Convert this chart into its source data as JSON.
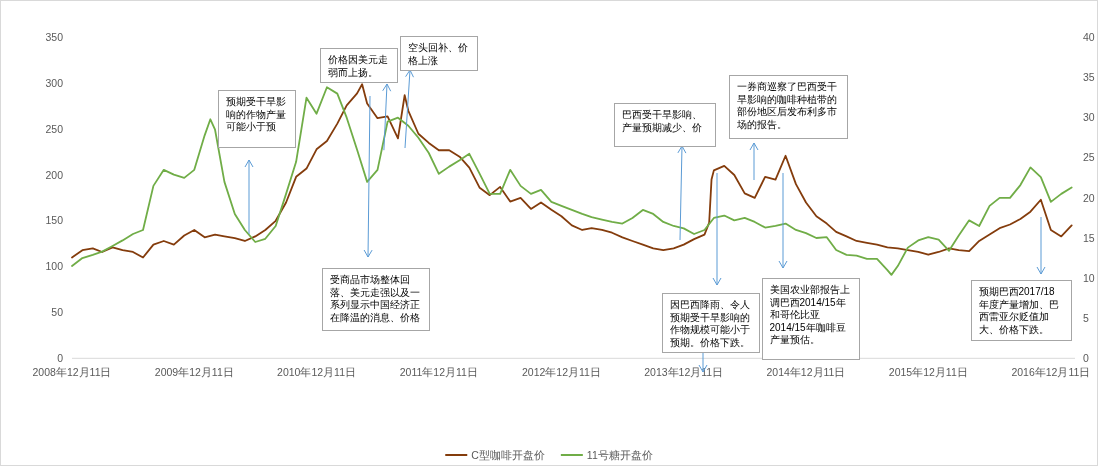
{
  "chart_data": {
    "type": "line",
    "xlim": [
      "2008-12-11",
      "2017-02-21"
    ],
    "xticks": [
      {
        "value": "2008-12-11",
        "label": "2008年12月11日"
      },
      {
        "value": "2009-12-11",
        "label": "2009年12月11日"
      },
      {
        "value": "2010-12-11",
        "label": "2010年12月11日"
      },
      {
        "value": "2011-12-11",
        "label": "2011年12月11日"
      },
      {
        "value": "2012-12-11",
        "label": "2012年12月11日"
      },
      {
        "value": "2013-12-11",
        "label": "2013年12月11日"
      },
      {
        "value": "2014-12-11",
        "label": "2014年12月11日"
      },
      {
        "value": "2015-12-11",
        "label": "2015年12月11日"
      },
      {
        "value": "2016-12-11",
        "label": "2016年12月11日"
      }
    ],
    "ylim": [
      0,
      350
    ],
    "yticks": [
      0,
      50,
      100,
      150,
      200,
      250,
      300,
      350
    ],
    "y2lim": [
      0,
      40
    ],
    "y2ticks": [
      0,
      5,
      10,
      15,
      20,
      25,
      30,
      35,
      40
    ],
    "legend": "bottom",
    "series": [
      {
        "name": "C型咖啡开盘价",
        "color": "#843c0c",
        "x": [
          "2008-12-11",
          "2009-01-11",
          "2009-02-11",
          "2009-03-11",
          "2009-04-11",
          "2009-05-11",
          "2009-06-11",
          "2009-07-11",
          "2009-08-11",
          "2009-09-11",
          "2009-10-11",
          "2009-11-11",
          "2009-12-11",
          "2010-01-11",
          "2010-02-11",
          "2010-03-11",
          "2010-04-11",
          "2010-05-11",
          "2010-06-11",
          "2010-07-11",
          "2010-08-11",
          "2010-09-11",
          "2010-10-11",
          "2010-11-11",
          "2010-12-11",
          "2011-01-11",
          "2011-02-11",
          "2011-03-11",
          "2011-04-11",
          "2011-04-26",
          "2011-05-11",
          "2011-06-11",
          "2011-07-11",
          "2011-08-11",
          "2011-08-31",
          "2011-09-11",
          "2011-10-11",
          "2011-11-11",
          "2011-12-11",
          "2012-01-11",
          "2012-02-11",
          "2012-03-11",
          "2012-04-11",
          "2012-05-11",
          "2012-06-11",
          "2012-07-11",
          "2012-08-11",
          "2012-09-11",
          "2012-10-11",
          "2012-11-11",
          "2012-12-11",
          "2013-01-11",
          "2013-02-11",
          "2013-03-11",
          "2013-04-11",
          "2013-05-11",
          "2013-06-11",
          "2013-07-11",
          "2013-08-11",
          "2013-09-11",
          "2013-10-11",
          "2013-11-11",
          "2013-12-11",
          "2014-01-11",
          "2014-02-11",
          "2014-02-25",
          "2014-03-04",
          "2014-03-11",
          "2014-04-11",
          "2014-05-11",
          "2014-06-11",
          "2014-07-11",
          "2014-08-11",
          "2014-09-11",
          "2014-10-11",
          "2014-11-11",
          "2014-12-11",
          "2015-01-11",
          "2015-02-11",
          "2015-03-11",
          "2015-04-11",
          "2015-05-11",
          "2015-06-11",
          "2015-07-11",
          "2015-08-11",
          "2015-09-11",
          "2015-10-11",
          "2015-11-11",
          "2015-12-11",
          "2016-01-11",
          "2016-02-11",
          "2016-03-11",
          "2016-04-11",
          "2016-05-11",
          "2016-06-11",
          "2016-07-11",
          "2016-08-11",
          "2016-09-11",
          "2016-10-11",
          "2016-11-11",
          "2016-12-11",
          "2017-01-11",
          "2017-02-11"
        ],
        "values": [
          110,
          118,
          120,
          116,
          121,
          118,
          116,
          110,
          124,
          128,
          124,
          134,
          140,
          132,
          135,
          133,
          131,
          128,
          133,
          140,
          150,
          170,
          198,
          207,
          228,
          237,
          256,
          276,
          289,
          299,
          278,
          262,
          264,
          240,
          287,
          270,
          245,
          235,
          227,
          227,
          220,
          208,
          186,
          178,
          187,
          171,
          175,
          163,
          170,
          162,
          155,
          145,
          140,
          142,
          140,
          137,
          132,
          128,
          124,
          120,
          118,
          120,
          124,
          130,
          135,
          148,
          195,
          205,
          210,
          200,
          180,
          175,
          198,
          195,
          221,
          190,
          170,
          155,
          147,
          138,
          133,
          128,
          126,
          124,
          121,
          120,
          118,
          116,
          113,
          116,
          120,
          118,
          117,
          128,
          135,
          142,
          146,
          152,
          160,
          173,
          140,
          133,
          145
        ]
      },
      {
        "name": "11号糖开盘价",
        "color": "#70ad47",
        "axis": "y2",
        "x": [
          "2008-12-11",
          "2009-01-11",
          "2009-02-11",
          "2009-03-11",
          "2009-04-11",
          "2009-05-11",
          "2009-06-11",
          "2009-07-11",
          "2009-08-11",
          "2009-09-11",
          "2009-10-11",
          "2009-11-11",
          "2009-12-11",
          "2010-01-11",
          "2010-01-28",
          "2010-02-11",
          "2010-03-11",
          "2010-04-11",
          "2010-05-11",
          "2010-06-11",
          "2010-07-11",
          "2010-08-11",
          "2010-09-11",
          "2010-10-11",
          "2010-11-11",
          "2010-12-11",
          "2011-01-11",
          "2011-02-11",
          "2011-03-11",
          "2011-04-11",
          "2011-05-11",
          "2011-06-11",
          "2011-07-11",
          "2011-08-11",
          "2011-09-11",
          "2011-10-11",
          "2011-11-11",
          "2011-12-11",
          "2012-01-11",
          "2012-02-11",
          "2012-03-11",
          "2012-04-11",
          "2012-05-11",
          "2012-06-11",
          "2012-07-11",
          "2012-08-11",
          "2012-09-11",
          "2012-10-11",
          "2012-11-11",
          "2012-12-11",
          "2013-01-11",
          "2013-02-11",
          "2013-03-11",
          "2013-04-11",
          "2013-05-11",
          "2013-06-11",
          "2013-07-11",
          "2013-08-11",
          "2013-09-11",
          "2013-10-11",
          "2013-11-11",
          "2013-12-11",
          "2014-01-11",
          "2014-02-11",
          "2014-03-11",
          "2014-04-11",
          "2014-05-11",
          "2014-06-11",
          "2014-07-11",
          "2014-08-11",
          "2014-09-11",
          "2014-10-11",
          "2014-11-11",
          "2014-12-11",
          "2015-01-11",
          "2015-02-11",
          "2015-03-11",
          "2015-04-11",
          "2015-05-11",
          "2015-06-11",
          "2015-07-11",
          "2015-08-11",
          "2015-08-23",
          "2015-09-11",
          "2015-10-11",
          "2015-11-11",
          "2015-12-11",
          "2016-01-11",
          "2016-02-11",
          "2016-03-11",
          "2016-04-11",
          "2016-05-11",
          "2016-06-11",
          "2016-07-11",
          "2016-08-11",
          "2016-09-11",
          "2016-10-11",
          "2016-11-11",
          "2016-12-11",
          "2017-01-11",
          "2017-02-11"
        ],
        "values": [
          11.5,
          12.5,
          12.9,
          13.3,
          14.0,
          14.7,
          15.5,
          16.0,
          21.5,
          23.5,
          22.9,
          22.5,
          23.5,
          27.8,
          29.8,
          28.5,
          22.0,
          18.0,
          16.0,
          14.5,
          14.9,
          16.5,
          20.5,
          24.5,
          32.5,
          30.5,
          33.8,
          33.0,
          30.0,
          26.0,
          22.0,
          23.5,
          29.5,
          30.0,
          29.0,
          27.5,
          25.6,
          23.0,
          23.9,
          24.7,
          25.5,
          23.0,
          20.5,
          20.5,
          23.5,
          21.5,
          20.5,
          21.0,
          19.5,
          19.0,
          18.5,
          18.0,
          17.6,
          17.3,
          17.0,
          16.8,
          17.5,
          18.5,
          18.0,
          17.0,
          16.5,
          16.2,
          15.5,
          16.0,
          17.5,
          17.8,
          17.2,
          17.5,
          17.0,
          16.3,
          16.5,
          16.8,
          16.0,
          15.6,
          15.0,
          15.1,
          13.5,
          12.9,
          12.8,
          12.4,
          12.4,
          11.0,
          10.4,
          11.5,
          13.8,
          14.7,
          15.1,
          14.8,
          13.4,
          15.3,
          17.2,
          16.5,
          19.0,
          20.0,
          20.0,
          21.6,
          23.8,
          22.6,
          19.5,
          20.5,
          21.3
        ]
      }
    ],
    "annotations": [
      "预期受干旱影响的作物产量可能小于预",
      {
        "text": "价格因美元走弱而上扬。",
        "x": "2011-06-30",
        "y": 227
      },
      "空头回补、价格上涨",
      "受商品市场整体回落、美元走强以及一系列显示中国经济正在降温的消息、价格",
      "巴西受干旱影响、产量预期减少、价",
      "一券商巡察了巴西受干旱影响的咖啡种植带的部份地区后发布利多市场的报告。",
      "因巴西降雨、令人预期受干旱影响的作物规模可能小于预期。价格下跌。",
      "美国农业部报告上调巴西2014/15年和哥伦比亚2014/15年咖啡豆产量预估。",
      "预期巴西2017/18年度产量增加、巴西雷亚尔贬值加大、价格下跌。"
    ]
  }
}
